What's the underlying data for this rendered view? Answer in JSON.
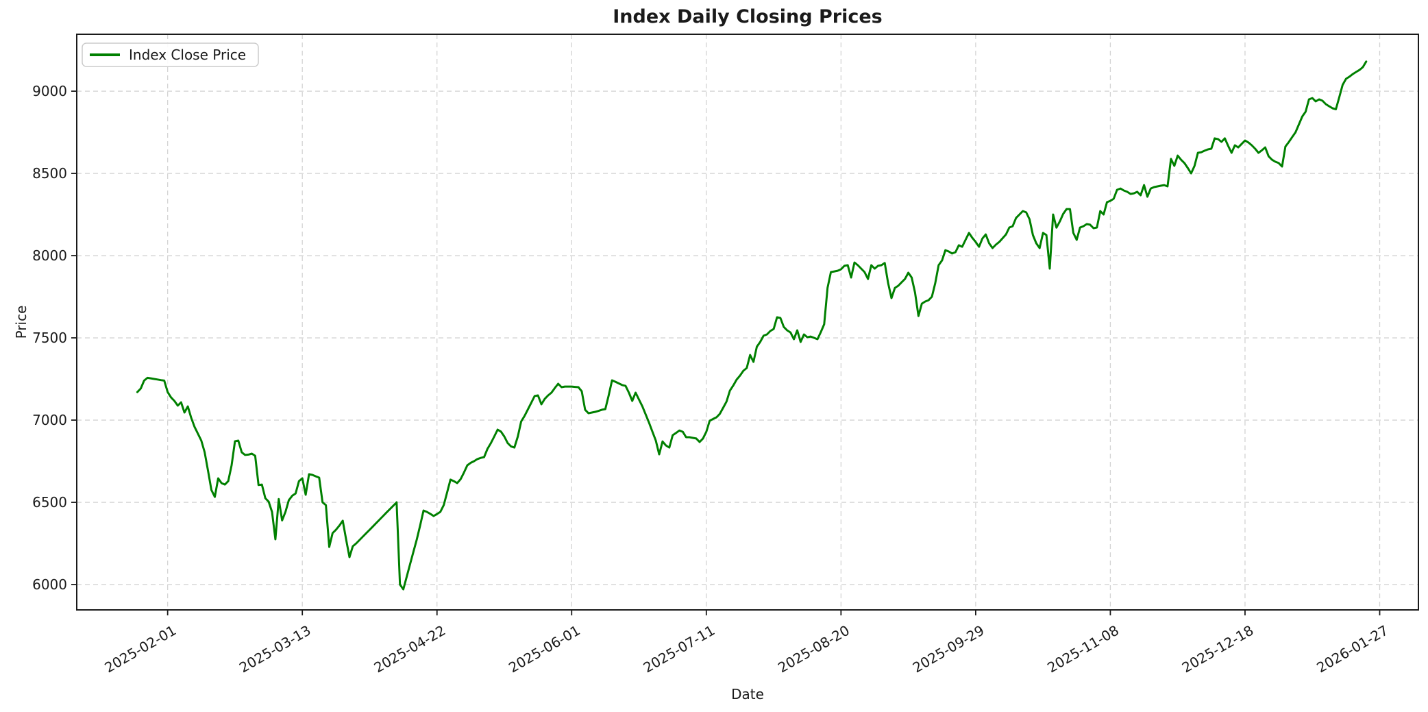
{
  "title": "Index Daily Closing Prices",
  "legend": {
    "label": "Index Close Price"
  },
  "axes": {
    "xlabel": "Date",
    "ylabel": "Price",
    "y_ticks": [
      6000,
      6500,
      7000,
      7500,
      8000,
      8500,
      9000
    ],
    "x_ticks": [
      {
        "label": "2025-02-01",
        "day": 9
      },
      {
        "label": "2025-03-13",
        "day": 49
      },
      {
        "label": "2025-04-22",
        "day": 89
      },
      {
        "label": "2025-06-01",
        "day": 129
      },
      {
        "label": "2025-07-11",
        "day": 169
      },
      {
        "label": "2025-08-20",
        "day": 209
      },
      {
        "label": "2025-09-29",
        "day": 249
      },
      {
        "label": "2025-11-08",
        "day": 289
      },
      {
        "label": "2025-12-18",
        "day": 329
      },
      {
        "label": "2026-01-27",
        "day": 369
      }
    ]
  },
  "colors": {
    "line": "#008000",
    "grid": "#cccccc",
    "spine": "#1a1a1a",
    "background": "#ffffff",
    "legend_border": "#cccccc"
  },
  "chart_data": {
    "type": "line",
    "title": "Index Daily Closing Prices",
    "xlabel": "Date",
    "ylabel": "Price",
    "grid": true,
    "legend_position": "upper left",
    "x_tick_labels": [
      "2025-02-01",
      "2025-03-13",
      "2025-04-22",
      "2025-06-01",
      "2025-07-11",
      "2025-08-20",
      "2025-09-29",
      "2025-11-08",
      "2025-12-18",
      "2026-01-27"
    ],
    "y_ticks": [
      6000,
      6500,
      7000,
      7500,
      8000,
      8500,
      9000
    ],
    "ylim": [
      5846,
      9346
    ],
    "xlim_days_from_start": [
      -18,
      380.5
    ],
    "series": [
      {
        "name": "Index Close Price",
        "color": "#008000",
        "start_date": "2025-01-23",
        "frequency": "daily",
        "values": [
          7170,
          7192,
          7240,
          7257,
          7254,
          7250,
          7247,
          7243,
          7240,
          7170,
          7138,
          7117,
          7088,
          7108,
          7046,
          7083,
          7013,
          6958,
          6917,
          6875,
          6804,
          6692,
          6575,
          6533,
          6646,
          6617,
          6608,
          6629,
          6725,
          6871,
          6875,
          6804,
          6788,
          6790,
          6796,
          6783,
          6605,
          6608,
          6525,
          6504,
          6442,
          6275,
          6520,
          6390,
          6442,
          6513,
          6540,
          6554,
          6629,
          6646,
          6546,
          6671,
          6667,
          6658,
          6650,
          6500,
          6483,
          6229,
          6313,
          6333,
          6358,
          6388,
          6275,
          6167,
          6233,
          6250,
          6271,
          6292,
          6313,
          6333,
          6354,
          6375,
          6396,
          6417,
          6438,
          6458,
          6479,
          6500,
          6000,
          5971,
          6047,
          6123,
          6199,
          6275,
          6360,
          6450,
          6442,
          6430,
          6417,
          6429,
          6442,
          6483,
          6560,
          6638,
          6629,
          6617,
          6640,
          6680,
          6725,
          6740,
          6750,
          6763,
          6770,
          6775,
          6825,
          6860,
          6900,
          6942,
          6930,
          6900,
          6860,
          6840,
          6833,
          6900,
          6992,
          7025,
          7065,
          7105,
          7146,
          7150,
          7096,
          7129,
          7150,
          7167,
          7195,
          7221,
          7200,
          7204,
          7204,
          7204,
          7202,
          7200,
          7175,
          7063,
          7042,
          7046,
          7050,
          7056,
          7063,
          7067,
          7150,
          7242,
          7233,
          7223,
          7213,
          7208,
          7167,
          7117,
          7167,
          7125,
          7083,
          7033,
          6983,
          6929,
          6875,
          6792,
          6870,
          6846,
          6833,
          6908,
          6922,
          6937,
          6929,
          6896,
          6896,
          6892,
          6888,
          6867,
          6888,
          6929,
          6996,
          7007,
          7017,
          7038,
          7075,
          7113,
          7179,
          7210,
          7246,
          7270,
          7300,
          7317,
          7396,
          7354,
          7446,
          7475,
          7513,
          7521,
          7542,
          7554,
          7625,
          7621,
          7567,
          7546,
          7533,
          7492,
          7546,
          7475,
          7521,
          7504,
          7508,
          7500,
          7492,
          7535,
          7583,
          7804,
          7900,
          7904,
          7908,
          7917,
          7938,
          7942,
          7867,
          7958,
          7942,
          7921,
          7900,
          7858,
          7942,
          7921,
          7938,
          7942,
          7955,
          7833,
          7742,
          7804,
          7817,
          7838,
          7858,
          7896,
          7867,
          7775,
          7633,
          7708,
          7721,
          7729,
          7750,
          7833,
          7942,
          7971,
          8033,
          8025,
          8013,
          8021,
          8063,
          8054,
          8096,
          8138,
          8108,
          8083,
          8054,
          8104,
          8129,
          8075,
          8046,
          8067,
          8083,
          8106,
          8129,
          8171,
          8179,
          8229,
          8250,
          8271,
          8263,
          8221,
          8125,
          8075,
          8046,
          8138,
          8125,
          7921,
          8250,
          8170,
          8208,
          8254,
          8283,
          8283,
          8138,
          8096,
          8171,
          8179,
          8192,
          8188,
          8167,
          8171,
          8271,
          8250,
          8325,
          8333,
          8346,
          8400,
          8408,
          8396,
          8388,
          8375,
          8379,
          8388,
          8367,
          8429,
          8358,
          8408,
          8417,
          8421,
          8425,
          8429,
          8421,
          8588,
          8546,
          8608,
          8583,
          8563,
          8533,
          8500,
          8546,
          8625,
          8629,
          8638,
          8646,
          8650,
          8713,
          8708,
          8692,
          8713,
          8667,
          8625,
          8671,
          8658,
          8679,
          8700,
          8688,
          8671,
          8650,
          8625,
          8640,
          8658,
          8604,
          8583,
          8571,
          8563,
          8542,
          8663,
          8690,
          8720,
          8750,
          8798,
          8846,
          8875,
          8950,
          8958,
          8938,
          8950,
          8942,
          8921,
          8908,
          8896,
          8890,
          8963,
          9038,
          9075,
          9088,
          9104,
          9117,
          9129,
          9146,
          9180
        ]
      }
    ]
  }
}
